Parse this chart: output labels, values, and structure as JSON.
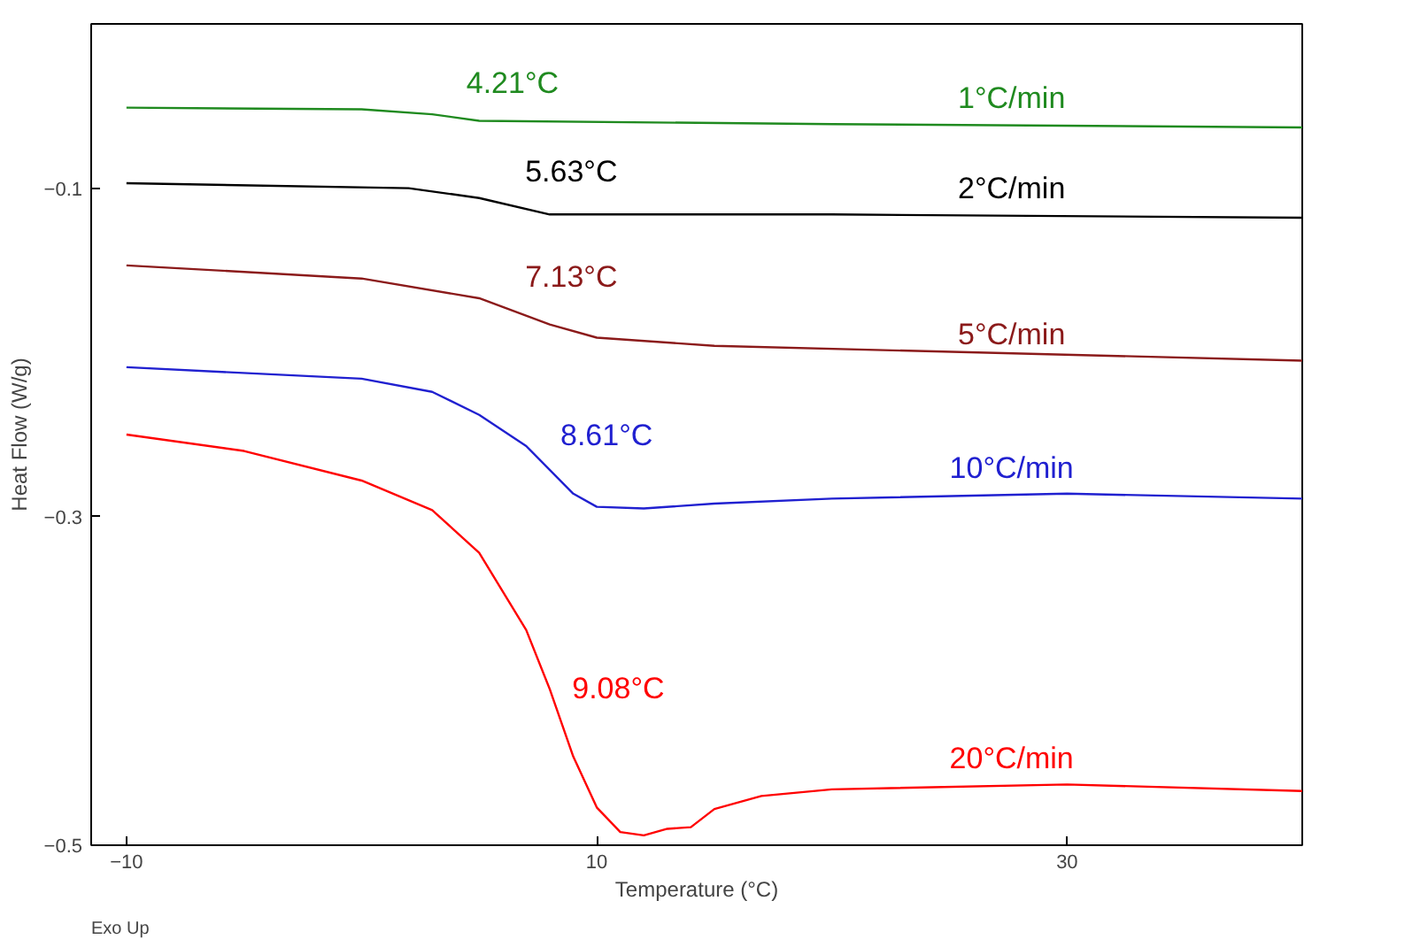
{
  "chart_data": {
    "type": "line",
    "xlabel": "Temperature (°C)",
    "ylabel": "Heat Flow (W/g)",
    "xlim": [
      -11.5,
      40
    ],
    "ylim": [
      -0.5,
      0
    ],
    "xticks": [
      -10,
      10,
      30
    ],
    "yticks": [
      -0.1,
      -0.3,
      -0.5
    ],
    "grid": false,
    "marker": "none",
    "line_style": "solid",
    "series": [
      {
        "name": "1°C/min",
        "color": "#1f8a1f",
        "x": [
          -10,
          0,
          3,
          5,
          20,
          40
        ],
        "values": [
          -0.051,
          -0.052,
          -0.055,
          -0.059,
          -0.061,
          -0.063
        ]
      },
      {
        "name": "2°C/min",
        "color": "#000000",
        "x": [
          -10,
          2,
          5,
          8,
          20,
          40
        ],
        "values": [
          -0.097,
          -0.1,
          -0.106,
          -0.116,
          -0.116,
          -0.118
        ]
      },
      {
        "name": "5°C/min",
        "color": "#8b1a1a",
        "x": [
          -10,
          0,
          5,
          8,
          10,
          15,
          40
        ],
        "values": [
          -0.147,
          -0.155,
          -0.167,
          -0.183,
          -0.191,
          -0.196,
          -0.205
        ]
      },
      {
        "name": "10°C/min",
        "color": "#2020d0",
        "x": [
          -10,
          0,
          3,
          5,
          7,
          9,
          10,
          12,
          15,
          20,
          30,
          40
        ],
        "values": [
          -0.209,
          -0.216,
          -0.224,
          -0.238,
          -0.257,
          -0.286,
          -0.294,
          -0.295,
          -0.292,
          -0.289,
          -0.286,
          -0.289
        ]
      },
      {
        "name": "20°C/min",
        "color": "#ff0000",
        "x": [
          -10,
          -5,
          0,
          3,
          5,
          7,
          8,
          9,
          10,
          11,
          12,
          13,
          14,
          15,
          17,
          20,
          30,
          40
        ],
        "values": [
          -0.25,
          -0.26,
          -0.278,
          -0.296,
          -0.322,
          -0.369,
          -0.405,
          -0.446,
          -0.477,
          -0.492,
          -0.494,
          -0.49,
          -0.489,
          -0.478,
          -0.47,
          -0.466,
          -0.463,
          -0.467
        ]
      }
    ],
    "annotations": [
      "4.21°C",
      "5.63°C",
      "7.13°C",
      "8.61°C",
      "9.08°C",
      "Exo Up"
    ]
  }
}
